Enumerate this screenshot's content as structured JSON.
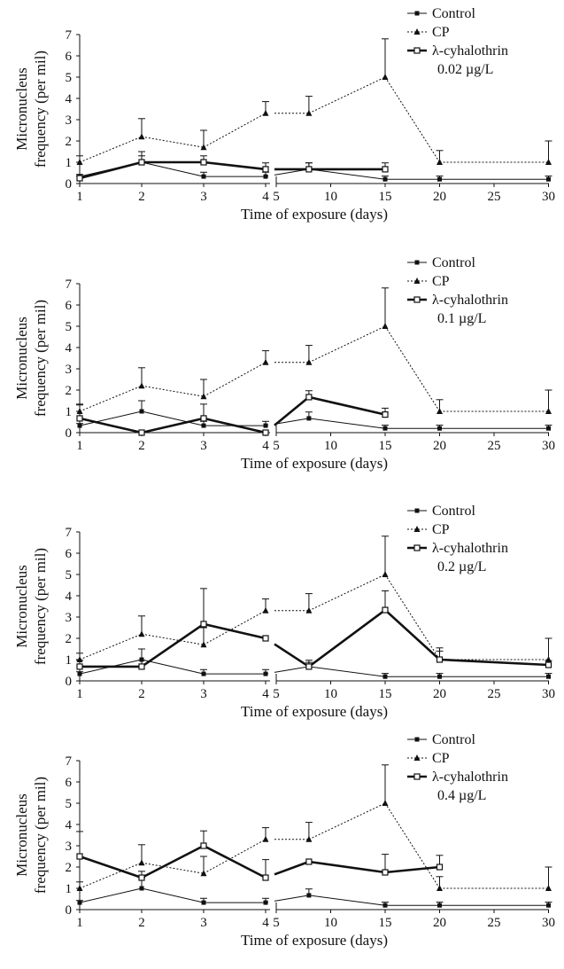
{
  "colors": {
    "ink": "#111111",
    "background": "#ffffff"
  },
  "chart_data": [
    {
      "type": "line",
      "panel": "0.02 µg/L",
      "xlabel": "Time of exposure (days)",
      "ylabel_lines": [
        "Micronucleus",
        "frequency (per mil)"
      ],
      "ylim": [
        0,
        7
      ],
      "y_ticks": [
        "0",
        "1",
        "2",
        "3",
        "4",
        "5",
        "6",
        "7"
      ],
      "x_ticks": [
        "1",
        "2",
        "3",
        "4",
        "5",
        "10",
        "15",
        "20",
        "25",
        "30"
      ],
      "x_axis": "broken: days 1–4 categorical, days 5–30 linear",
      "legend_position": "top-right",
      "legend": [
        "Control",
        "CP",
        "λ-cyhalothrin",
        "0.02 µg/L"
      ],
      "series": [
        {
          "name": "Control",
          "style": "solid-thin",
          "marker": "square-filled",
          "x": [
            1,
            2,
            3,
            4,
            8,
            15,
            20,
            30
          ],
          "y": [
            0.33,
            1.0,
            0.33,
            0.33,
            0.67,
            0.2,
            0.2,
            0.2
          ],
          "err": [
            0.1,
            0.5,
            0.2,
            0.2,
            0.3,
            0.15,
            0.15,
            0.15
          ]
        },
        {
          "name": "CP",
          "style": "dotted",
          "marker": "triangle-filled",
          "x": [
            1,
            2,
            3,
            4,
            8,
            15,
            20,
            30
          ],
          "y": [
            1.0,
            2.2,
            1.7,
            3.3,
            3.3,
            5.0,
            1.0,
            1.0
          ],
          "err": [
            0.3,
            0.85,
            0.8,
            0.55,
            0.8,
            1.8,
            0.55,
            1.0
          ]
        },
        {
          "name": "λ-cyhalothrin",
          "style": "solid-thick",
          "marker": "square-open",
          "x": [
            1,
            2,
            3,
            4,
            8,
            15
          ],
          "y": [
            0.25,
            1.0,
            1.0,
            0.67,
            0.67,
            0.67
          ],
          "err": [
            0.1,
            0.3,
            0.3,
            0.3,
            0.3,
            0.3
          ]
        }
      ]
    },
    {
      "type": "line",
      "panel": "0.1 µg/L",
      "xlabel": "Time of exposure (days)",
      "ylabel_lines": [
        "Micronucleus",
        "frequency (per mil)"
      ],
      "ylim": [
        0,
        7
      ],
      "y_ticks": [
        "0",
        "1",
        "2",
        "3",
        "4",
        "5",
        "6",
        "7"
      ],
      "x_ticks": [
        "1",
        "2",
        "3",
        "4",
        "5",
        "10",
        "15",
        "20",
        "25",
        "30"
      ],
      "x_axis": "broken: days 1–4 categorical, days 5–30 linear",
      "legend_position": "top-right",
      "legend": [
        "Control",
        "CP",
        "λ-cyhalothrin",
        "0.1 µg/L"
      ],
      "series": [
        {
          "name": "Control",
          "style": "solid-thin",
          "marker": "square-filled",
          "x": [
            1,
            2,
            3,
            4,
            8,
            15,
            20,
            30
          ],
          "y": [
            0.33,
            1.0,
            0.33,
            0.33,
            0.67,
            0.2,
            0.2,
            0.2
          ],
          "err": [
            0.1,
            0.5,
            0.2,
            0.2,
            0.3,
            0.15,
            0.15,
            0.15
          ]
        },
        {
          "name": "CP",
          "style": "dotted",
          "marker": "triangle-filled",
          "x": [
            1,
            2,
            3,
            4,
            8,
            15,
            20,
            30
          ],
          "y": [
            1.0,
            2.2,
            1.7,
            3.3,
            3.3,
            5.0,
            1.0,
            1.0
          ],
          "err": [
            0.3,
            0.85,
            0.8,
            0.55,
            0.8,
            1.8,
            0.55,
            1.0
          ]
        },
        {
          "name": "λ-cyhalothrin",
          "style": "solid-thick",
          "marker": "square-open",
          "x": [
            1,
            2,
            3,
            4,
            8,
            15
          ],
          "y": [
            0.67,
            0.0,
            0.67,
            0.0,
            1.67,
            0.85
          ],
          "err": [
            0.67,
            0.0,
            0.67,
            0.0,
            0.3,
            0.3
          ]
        }
      ]
    },
    {
      "type": "line",
      "panel": "0.2 µg/L",
      "xlabel": "Time of exposure (days)",
      "ylabel_lines": [
        "Micronucleus",
        "frequency (per mil)"
      ],
      "ylim": [
        0,
        7
      ],
      "y_ticks": [
        "0",
        "1",
        "2",
        "3",
        "4",
        "5",
        "6",
        "7"
      ],
      "x_ticks": [
        "1",
        "2",
        "3",
        "4",
        "5",
        "10",
        "15",
        "20",
        "25",
        "30"
      ],
      "x_axis": "broken: days 1–4 categorical, days 5–30 linear",
      "legend_position": "top-right",
      "legend": [
        "Control",
        "CP",
        "λ-cyhalothrin",
        "0.2 µg/L"
      ],
      "series": [
        {
          "name": "Control",
          "style": "solid-thin",
          "marker": "square-filled",
          "x": [
            1,
            2,
            3,
            4,
            8,
            15,
            20,
            30
          ],
          "y": [
            0.33,
            1.0,
            0.33,
            0.33,
            0.67,
            0.2,
            0.2,
            0.2
          ],
          "err": [
            0.1,
            0.5,
            0.2,
            0.2,
            0.3,
            0.15,
            0.15,
            0.15
          ]
        },
        {
          "name": "CP",
          "style": "dotted",
          "marker": "triangle-filled",
          "x": [
            1,
            2,
            3,
            4,
            8,
            15,
            20,
            30
          ],
          "y": [
            1.0,
            2.2,
            1.7,
            3.3,
            3.3,
            5.0,
            1.0,
            1.0
          ],
          "err": [
            0.3,
            0.85,
            0.8,
            0.55,
            0.8,
            1.8,
            0.55,
            1.0
          ]
        },
        {
          "name": "λ-cyhalothrin",
          "style": "solid-thick",
          "marker": "square-open",
          "x": [
            1,
            2,
            3,
            4,
            8,
            15,
            20,
            30
          ],
          "y": [
            0.67,
            0.67,
            2.67,
            2.0,
            0.67,
            3.33,
            1.0,
            0.75
          ],
          "err": [
            0.3,
            0.3,
            1.67,
            0.0,
            0.2,
            0.9,
            0.4,
            0.2
          ]
        }
      ]
    },
    {
      "type": "line",
      "panel": "0.4 µg/L",
      "xlabel": "Time of exposure (days)",
      "ylabel_lines": [
        "Micronucleus",
        "frequency (per mil)"
      ],
      "ylim": [
        0,
        7
      ],
      "y_ticks": [
        "0",
        "1",
        "2",
        "3",
        "4",
        "5",
        "6",
        "7"
      ],
      "x_ticks": [
        "1",
        "2",
        "3",
        "4",
        "5",
        "10",
        "15",
        "20",
        "25",
        "30"
      ],
      "x_axis": "broken: days 1–4 categorical, days 5–30 linear",
      "legend_position": "top-right",
      "legend": [
        "Control",
        "CP",
        "λ-cyhalothrin",
        "0.4 µg/L"
      ],
      "series": [
        {
          "name": "Control",
          "style": "solid-thin",
          "marker": "square-filled",
          "x": [
            1,
            2,
            3,
            4,
            8,
            15,
            20,
            30
          ],
          "y": [
            0.33,
            1.0,
            0.33,
            0.33,
            0.67,
            0.2,
            0.2,
            0.2
          ],
          "err": [
            0.1,
            0.5,
            0.2,
            0.2,
            0.3,
            0.15,
            0.15,
            0.15
          ]
        },
        {
          "name": "CP",
          "style": "dotted",
          "marker": "triangle-filled",
          "x": [
            1,
            2,
            3,
            4,
            8,
            15,
            20,
            30
          ],
          "y": [
            1.0,
            2.2,
            1.7,
            3.3,
            3.3,
            5.0,
            1.0,
            1.0
          ],
          "err": [
            0.3,
            0.85,
            0.8,
            0.55,
            0.8,
            1.8,
            0.55,
            1.0
          ]
        },
        {
          "name": "λ-cyhalothrin",
          "style": "solid-thick",
          "marker": "square-open",
          "x": [
            1,
            2,
            3,
            4,
            8,
            15,
            20
          ],
          "y": [
            2.5,
            1.5,
            3.0,
            1.5,
            2.25,
            1.75,
            2.0
          ],
          "err": [
            1.17,
            0.3,
            0.7,
            0.85,
            0.0,
            0.85,
            0.55
          ]
        }
      ]
    }
  ]
}
